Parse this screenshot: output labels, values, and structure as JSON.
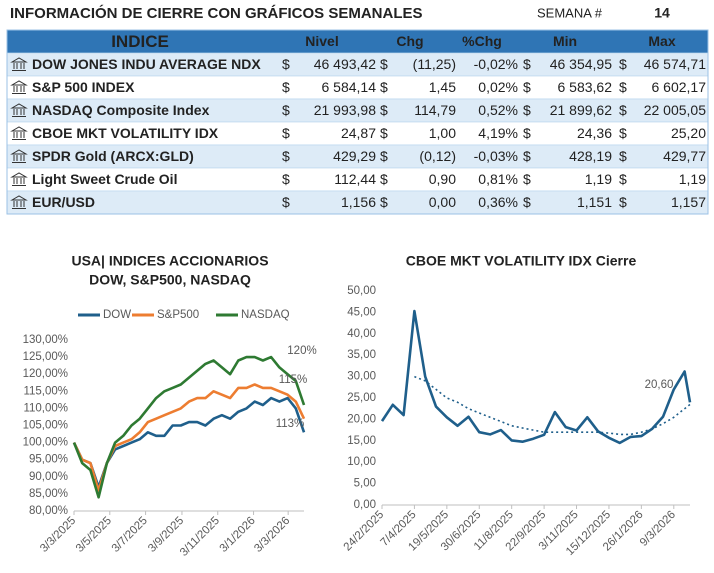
{
  "header": {
    "title": "INFORMACIÓN DE CIERRE CON GRÁFICOS SEMANALES",
    "week_label": "SEMANA #",
    "week": "14"
  },
  "table": {
    "header": [
      "INDICE",
      "Nivel",
      "Chg",
      "%Chg",
      "Min",
      "Max"
    ],
    "rows": [
      [
        "DOW JONES INDU AVERAGE NDX",
        "$",
        "46 493,42",
        "$",
        "(11,25)",
        "-0,02%",
        "$",
        "46 354,95",
        "$",
        "46 574,71"
      ],
      [
        "S&P 500 INDEX",
        "$",
        "6 584,14",
        "$",
        "1,45",
        "0,02%",
        "$",
        "6 583,62",
        "$",
        "6 602,17"
      ],
      [
        "NASDAQ Composite Index",
        "$",
        "21 993,98",
        "$",
        "114,79",
        "0,52%",
        "$",
        "21 899,62",
        "$",
        "22 005,05"
      ],
      [
        "CBOE MKT VOLATILITY IDX",
        "$",
        "24,87",
        "$",
        "1,00",
        "4,19%",
        "$",
        "24,36",
        "$",
        "25,20"
      ],
      [
        "SPDR Gold (ARCX:GLD)",
        "$",
        "429,29",
        "$",
        "(0,12)",
        "-0,03%",
        "$",
        "428,19",
        "$",
        "429,77"
      ],
      [
        "Light Sweet Crude Oil",
        "$",
        "112,44",
        "$",
        "0,90",
        "0,81%",
        "$",
        "1,19",
        "$",
        "1,19"
      ],
      [
        "EUR/USD",
        "$",
        "1,156",
        "$",
        "0,00",
        "0,36%",
        "$",
        "1,151",
        "$",
        "1,157"
      ]
    ]
  },
  "chart_data": [
    {
      "type": "line",
      "title": "USA| INDICES ACCIONARIOS",
      "subtitle": "DOW, S&P500, NASDAQ",
      "x": [
        "3/3/2025",
        "17/3/2025",
        "31/3/2025",
        "14/4/2025",
        "28/4/2025",
        "12/5/2025",
        "26/5/2025",
        "9/6/2025",
        "23/6/2025",
        "7/7/2025",
        "21/7/2025",
        "4/8/2025",
        "18/8/2025",
        "1/9/2025",
        "15/9/2025",
        "29/9/2025",
        "13/10/2025",
        "27/10/2025",
        "10/11/2025",
        "24/11/2025",
        "8/12/2025",
        "22/12/2025",
        "5/1/2026",
        "19/1/2026",
        "2/2/2026",
        "16/2/2026",
        "2/3/2026",
        "16/3/2026",
        "30/3/2026"
      ],
      "xlim": [
        "3/3/2025",
        "30/3/2026"
      ],
      "xticks": [
        "3/3/2025",
        "3/5/2025",
        "3/7/2025",
        "3/9/2025",
        "3/11/2025",
        "3/1/2026",
        "3/3/2026"
      ],
      "ylim": [
        80,
        130
      ],
      "yticks": [
        {
          "value": 80,
          "label": "80,00%"
        },
        {
          "value": 85,
          "label": "85,00%"
        },
        {
          "value": 90,
          "label": "90,00%"
        },
        {
          "value": 95,
          "label": "95,00%"
        },
        {
          "value": 100,
          "label": "100,00%"
        },
        {
          "value": 105,
          "label": "105,00%"
        },
        {
          "value": 110,
          "label": "110,00%"
        },
        {
          "value": 115,
          "label": "115,00%"
        },
        {
          "value": 120,
          "label": "120,00%"
        },
        {
          "value": 125,
          "label": "125,00%"
        },
        {
          "value": 130,
          "label": "130,00%"
        }
      ],
      "series": [
        {
          "name": "DOW",
          "color": "#1f5f8b",
          "values": [
            100,
            95,
            94,
            87,
            94,
            98,
            99,
            100,
            101,
            103,
            102,
            102,
            105,
            105,
            106,
            106,
            105,
            107,
            108,
            107,
            109,
            110,
            112,
            111,
            113,
            112,
            113,
            110,
            103
          ]
        },
        {
          "name": "S&P500",
          "color": "#ed7d31",
          "values": [
            100,
            95,
            94,
            86,
            94,
            99,
            100,
            101,
            103,
            106,
            107,
            108,
            109,
            110,
            112,
            113,
            113,
            115,
            114,
            113,
            116,
            116,
            117,
            116,
            116,
            115,
            114,
            112,
            107
          ]
        },
        {
          "name": "NASDAQ",
          "color": "#2e7a32",
          "values": [
            100,
            94,
            92,
            84,
            94,
            100,
            102,
            105,
            107,
            110,
            113,
            115,
            116,
            117,
            119,
            121,
            123,
            124,
            122,
            120,
            124,
            125,
            125,
            124,
            125,
            122,
            120,
            118,
            111
          ]
        }
      ],
      "annotations": [
        "120%",
        "115%",
        "113%"
      ],
      "legend": "top"
    },
    {
      "type": "line",
      "title": "CBOE MKT VOLATILITY IDX Cierre",
      "x": [
        "24/2/2025",
        "10/3/2025",
        "24/3/2025",
        "7/4/2025",
        "21/4/2025",
        "5/5/2025",
        "19/5/2025",
        "2/6/2025",
        "16/6/2025",
        "30/6/2025",
        "14/7/2025",
        "28/7/2025",
        "11/8/2025",
        "25/8/2025",
        "8/9/2025",
        "22/9/2025",
        "6/10/2025",
        "20/10/2025",
        "3/11/2025",
        "17/11/2025",
        "1/12/2025",
        "15/12/2025",
        "29/12/2025",
        "12/1/2026",
        "26/1/2026",
        "9/2/2026",
        "23/2/2026",
        "9/3/2026",
        "23/3/2026",
        "30/3/2026"
      ],
      "xlim": [
        "24/2/2025",
        "30/3/2026"
      ],
      "xticks": [
        "24/2/2025",
        "7/4/2025",
        "19/5/2025",
        "30/6/2025",
        "11/8/2025",
        "22/9/2025",
        "3/11/2025",
        "15/12/2025",
        "26/1/2026",
        "9/3/2026"
      ],
      "ylim": [
        0,
        50
      ],
      "yticks": [
        {
          "value": 0,
          "label": "0,00"
        },
        {
          "value": 5,
          "label": "5,00"
        },
        {
          "value": 10,
          "label": "10,00"
        },
        {
          "value": 15,
          "label": "15,00"
        },
        {
          "value": 20,
          "label": "20,00"
        },
        {
          "value": 25,
          "label": "25,00"
        },
        {
          "value": 30,
          "label": "30,00"
        },
        {
          "value": 35,
          "label": "35,00"
        },
        {
          "value": 40,
          "label": "40,00"
        },
        {
          "value": 45,
          "label": "45,00"
        },
        {
          "value": 50,
          "label": "50,00"
        }
      ],
      "series": [
        {
          "color": "#1f5f8b",
          "values": [
            19.6,
            23.4,
            21,
            45.3,
            30,
            23,
            20.5,
            18.5,
            20.6,
            17,
            16.5,
            17.5,
            15.1,
            14.8,
            15.5,
            16.4,
            21.7,
            18.2,
            17.4,
            20.5,
            17.2,
            15.7,
            14.5,
            15.9,
            16.1,
            17.8,
            20.6,
            27,
            31.2,
            24
          ],
          "value_labels": [
            null,
            null,
            null,
            null,
            null,
            null,
            null,
            null,
            null,
            null,
            null,
            null,
            null,
            null,
            null,
            null,
            null,
            null,
            null,
            null,
            null,
            null,
            null,
            null,
            null,
            null,
            "20,60",
            null,
            null,
            null
          ]
        },
        {
          "color": "#1f5f8b",
          "dash": true,
          "values": [
            null,
            null,
            null,
            30,
            29,
            27,
            25,
            24,
            22.5,
            21.5,
            20.5,
            19.5,
            18.5,
            18,
            17.5,
            17,
            17,
            17,
            17,
            17,
            17,
            16.8,
            16.5,
            16.5,
            17,
            17.8,
            19,
            20.5,
            22.5,
            23.5
          ]
        }
      ]
    }
  ]
}
